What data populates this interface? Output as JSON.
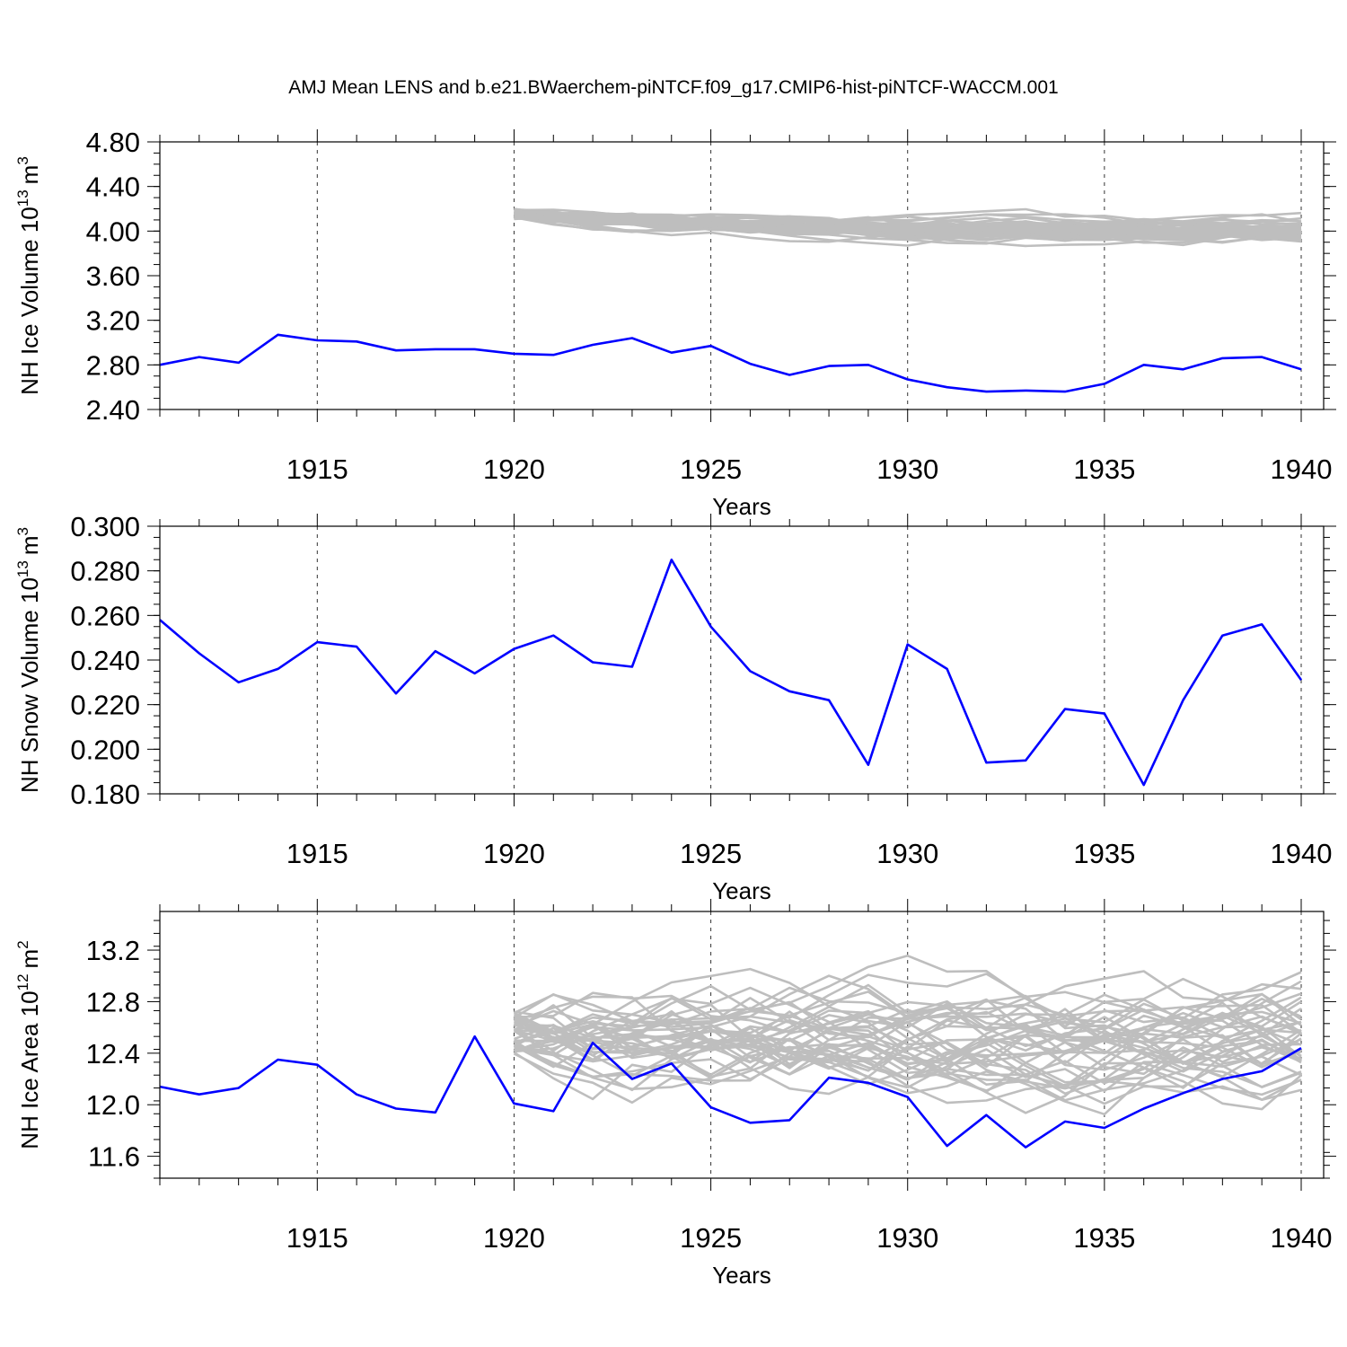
{
  "title": "AMJ Mean LENS and b.e21.BWaerchem-piNTCF.f09_g17.CMIP6-hist-piNTCF-WACCM.001",
  "colors": {
    "ensemble": "#bebebe",
    "observed": "#0000ff",
    "axis": "#000000"
  },
  "chart_data": [
    {
      "type": "line",
      "name": "ice-volume",
      "ylabel": "NH Ice Volume 10",
      "ylabel_exponent": "13",
      "ylabel_unit": "m",
      "ylabel_unit_exponent": "3",
      "xlabel": "Years",
      "xlim": [
        1911,
        1940
      ],
      "ylim": [
        2.4,
        4.8
      ],
      "yticks": [
        "2.40",
        "2.80",
        "3.20",
        "3.60",
        "4.00",
        "4.40",
        "4.80"
      ],
      "ytick_values": [
        2.4,
        2.8,
        3.2,
        3.6,
        4.0,
        4.4,
        4.8
      ],
      "xticks": [
        "1915",
        "1920",
        "1925",
        "1930",
        "1935",
        "1940"
      ],
      "xtick_values": [
        1915,
        1920,
        1925,
        1930,
        1935,
        1940
      ],
      "grid": "vertical dashed at labeled years",
      "observed": {
        "x": [
          1911,
          1912,
          1913,
          1914,
          1915,
          1916,
          1917,
          1918,
          1919,
          1920,
          1921,
          1922,
          1923,
          1924,
          1925,
          1926,
          1927,
          1928,
          1929,
          1930,
          1931,
          1932,
          1933,
          1934,
          1935,
          1936,
          1937,
          1938,
          1939,
          1940
        ],
        "y": [
          2.8,
          2.87,
          2.82,
          3.07,
          3.02,
          3.01,
          2.93,
          2.94,
          2.94,
          2.9,
          2.89,
          2.98,
          3.04,
          2.91,
          2.97,
          2.81,
          2.71,
          2.79,
          2.8,
          2.67,
          2.6,
          2.56,
          2.57,
          2.56,
          2.63,
          2.8,
          2.76,
          2.86,
          2.87,
          2.76
        ]
      },
      "ensemble": {
        "start_year": 1920,
        "end_year": 1940,
        "members": 40,
        "start_value": 4.15,
        "start_spread": 0.05,
        "mean": 4.0,
        "spread": 0.2,
        "step": 0.05,
        "seed": 7
      }
    },
    {
      "type": "line",
      "name": "snow-volume",
      "ylabel": "NH Snow Volume 10",
      "ylabel_exponent": "13",
      "ylabel_unit": "m",
      "ylabel_unit_exponent": "3",
      "xlabel": "Years",
      "xlim": [
        1911,
        1940
      ],
      "ylim": [
        0.18,
        0.3
      ],
      "yticks": [
        "0.180",
        "0.200",
        "0.220",
        "0.240",
        "0.260",
        "0.280",
        "0.300"
      ],
      "ytick_values": [
        0.18,
        0.2,
        0.22,
        0.24,
        0.26,
        0.28,
        0.3
      ],
      "xticks": [
        "1915",
        "1920",
        "1925",
        "1930",
        "1935",
        "1940"
      ],
      "xtick_values": [
        1915,
        1920,
        1925,
        1930,
        1935,
        1940
      ],
      "grid": "vertical dashed at labeled years",
      "observed": {
        "x": [
          1911,
          1912,
          1913,
          1914,
          1915,
          1916,
          1917,
          1918,
          1919,
          1920,
          1921,
          1922,
          1923,
          1924,
          1925,
          1926,
          1927,
          1928,
          1929,
          1930,
          1931,
          1932,
          1933,
          1934,
          1935,
          1936,
          1937,
          1938,
          1939,
          1940
        ],
        "y": [
          0.258,
          0.243,
          0.23,
          0.236,
          0.248,
          0.246,
          0.225,
          0.244,
          0.234,
          0.245,
          0.251,
          0.239,
          0.237,
          0.285,
          0.255,
          0.235,
          0.226,
          0.222,
          0.193,
          0.247,
          0.236,
          0.194,
          0.195,
          0.218,
          0.216,
          0.184,
          0.222,
          0.251,
          0.256,
          0.231
        ]
      }
    },
    {
      "type": "line",
      "name": "ice-area",
      "ylabel": "NH Ice Area 10",
      "ylabel_exponent": "12",
      "ylabel_unit": "m",
      "ylabel_unit_exponent": "2",
      "xlabel": "Years",
      "xlim": [
        1911,
        1940
      ],
      "ylim": [
        11.43,
        13.5
      ],
      "yticks": [
        "11.6",
        "12.0",
        "12.4",
        "12.8",
        "13.2"
      ],
      "ytick_values": [
        11.6,
        12.0,
        12.4,
        12.8,
        13.2
      ],
      "xticks": [
        "1915",
        "1920",
        "1925",
        "1930",
        "1935",
        "1940"
      ],
      "xtick_values": [
        1915,
        1920,
        1925,
        1930,
        1935,
        1940
      ],
      "grid": "vertical dashed at labeled years",
      "observed": {
        "x": [
          1911,
          1912,
          1913,
          1914,
          1915,
          1916,
          1917,
          1918,
          1919,
          1920,
          1921,
          1922,
          1923,
          1924,
          1925,
          1926,
          1927,
          1928,
          1929,
          1930,
          1931,
          1932,
          1933,
          1934,
          1935,
          1936,
          1937,
          1938,
          1939,
          1940
        ],
        "y": [
          12.14,
          12.08,
          12.13,
          12.35,
          12.31,
          12.08,
          11.97,
          11.94,
          12.53,
          12.01,
          11.95,
          12.48,
          12.2,
          12.32,
          11.98,
          11.86,
          11.88,
          12.21,
          12.17,
          12.06,
          11.68,
          11.92,
          11.67,
          11.87,
          11.82,
          11.97,
          12.09,
          12.2,
          12.26,
          12.44
        ]
      },
      "ensemble": {
        "start_year": 1920,
        "end_year": 1940,
        "members": 40,
        "start_value": 12.55,
        "start_spread": 0.18,
        "mean": 12.5,
        "spread": 0.35,
        "step": 0.22,
        "seed": 21
      }
    }
  ]
}
